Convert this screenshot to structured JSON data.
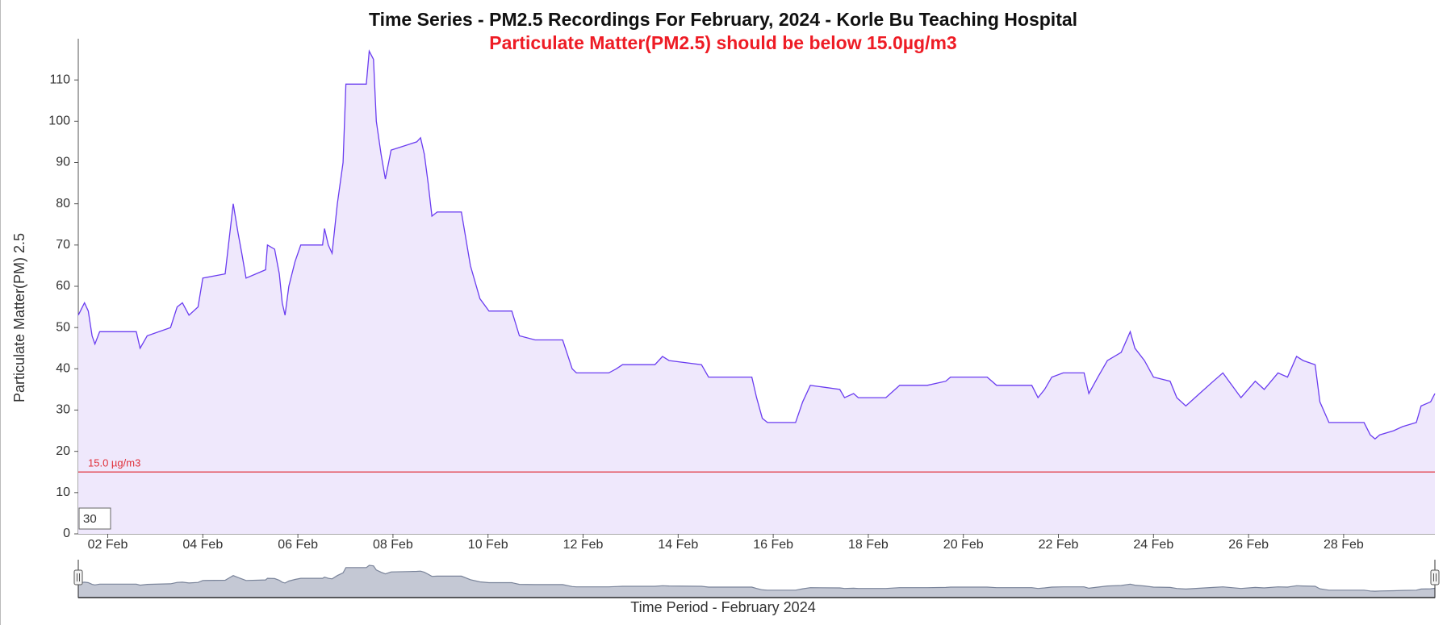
{
  "chart_data": {
    "type": "area",
    "title": "Time Series - PM2.5 Recordings For February, 2024 - Korle Bu Teaching Hospital",
    "subtitle": "Particulate Matter(PM2.5) should be below 15.0µg/m3",
    "y_label": "Particulate Matter(PM) 2.5",
    "x_label": "Time Period - February 2024",
    "range_input": "30",
    "threshold": {
      "value": 15,
      "label": "15.0 µg/m3",
      "color": "#e0303a"
    },
    "xlim": [
      1.38,
      29.92
    ],
    "ylim": [
      0,
      120
    ],
    "xticks": [
      {
        "value": 2,
        "label": "02 Feb"
      },
      {
        "value": 4,
        "label": "04 Feb"
      },
      {
        "value": 6,
        "label": "06 Feb"
      },
      {
        "value": 8,
        "label": "08 Feb"
      },
      {
        "value": 10,
        "label": "10 Feb"
      },
      {
        "value": 12,
        "label": "12 Feb"
      },
      {
        "value": 14,
        "label": "14 Feb"
      },
      {
        "value": 16,
        "label": "16 Feb"
      },
      {
        "value": 18,
        "label": "18 Feb"
      },
      {
        "value": 20,
        "label": "20 Feb"
      },
      {
        "value": 22,
        "label": "22 Feb"
      },
      {
        "value": 24,
        "label": "24 Feb"
      },
      {
        "value": 26,
        "label": "26 Feb"
      },
      {
        "value": 28,
        "label": "28 Feb"
      }
    ],
    "yticks": [
      0,
      10,
      20,
      30,
      40,
      50,
      60,
      70,
      80,
      90,
      100,
      110
    ],
    "series": [
      {
        "color": "#6a3cf0",
        "fill": "#efe8fc",
        "x": [
          1.38,
          1.51,
          1.59,
          1.67,
          1.73,
          1.83,
          2.6,
          2.68,
          2.83,
          3.32,
          3.46,
          3.57,
          3.71,
          3.9,
          4.0,
          4.47,
          4.54,
          4.64,
          4.74,
          4.82,
          4.91,
          5.32,
          5.36,
          5.51,
          5.61,
          5.67,
          5.73,
          5.81,
          5.94,
          6.06,
          6.52,
          6.56,
          6.64,
          6.72,
          6.83,
          6.95,
          7.01,
          7.44,
          7.5,
          7.59,
          7.65,
          7.75,
          7.84,
          7.96,
          8.5,
          8.58,
          8.66,
          8.74,
          8.82,
          8.93,
          9.44,
          9.63,
          9.83,
          10.02,
          10.5,
          10.66,
          10.99,
          11.57,
          11.77,
          11.86,
          12.54,
          12.7,
          12.83,
          13.51,
          13.67,
          13.81,
          14.49,
          14.64,
          14.97,
          15.55,
          15.65,
          15.77,
          15.88,
          16.47,
          16.62,
          16.78,
          17.4,
          17.5,
          17.69,
          17.79,
          18.37,
          18.66,
          19.24,
          19.63,
          19.73,
          20.5,
          20.7,
          21.44,
          21.57,
          21.71,
          21.86,
          22.1,
          22.54,
          22.64,
          22.83,
          23.03,
          23.32,
          23.51,
          23.61,
          23.81,
          24.0,
          24.35,
          24.49,
          24.68,
          24.97,
          25.26,
          25.46,
          25.65,
          25.84,
          26.14,
          26.33,
          26.62,
          26.82,
          27.01,
          27.15,
          27.4,
          27.5,
          27.69,
          28.08,
          28.43,
          28.56,
          28.66,
          28.76,
          29.05,
          29.24,
          29.53,
          29.63,
          29.83,
          29.92
        ],
        "values": [
          53,
          56,
          54,
          48,
          46,
          49,
          49,
          45,
          48,
          50,
          55,
          56,
          53,
          55,
          62,
          63,
          70,
          80,
          73,
          68,
          62,
          64,
          70,
          69,
          63,
          56,
          53,
          60,
          66,
          70,
          70,
          74,
          70,
          68,
          80,
          90,
          109,
          109,
          117,
          115,
          100,
          92,
          86,
          93,
          95,
          96,
          92,
          85,
          77,
          78,
          78,
          65,
          57,
          54,
          54,
          48,
          47,
          47,
          40,
          39,
          39,
          40,
          41,
          41,
          43,
          42,
          41,
          38,
          38,
          38,
          33,
          28,
          27,
          27,
          32,
          36,
          35,
          33,
          34,
          33,
          33,
          36,
          36,
          37,
          38,
          38,
          36,
          36,
          33,
          35,
          38,
          39,
          39,
          34,
          38,
          42,
          44,
          49,
          45,
          42,
          38,
          37,
          33,
          31,
          34,
          37,
          39,
          36,
          33,
          37,
          35,
          39,
          38,
          43,
          42,
          41,
          32,
          27,
          27,
          27,
          24,
          23,
          24,
          25,
          26,
          27,
          31,
          32,
          34
        ]
      }
    ]
  }
}
